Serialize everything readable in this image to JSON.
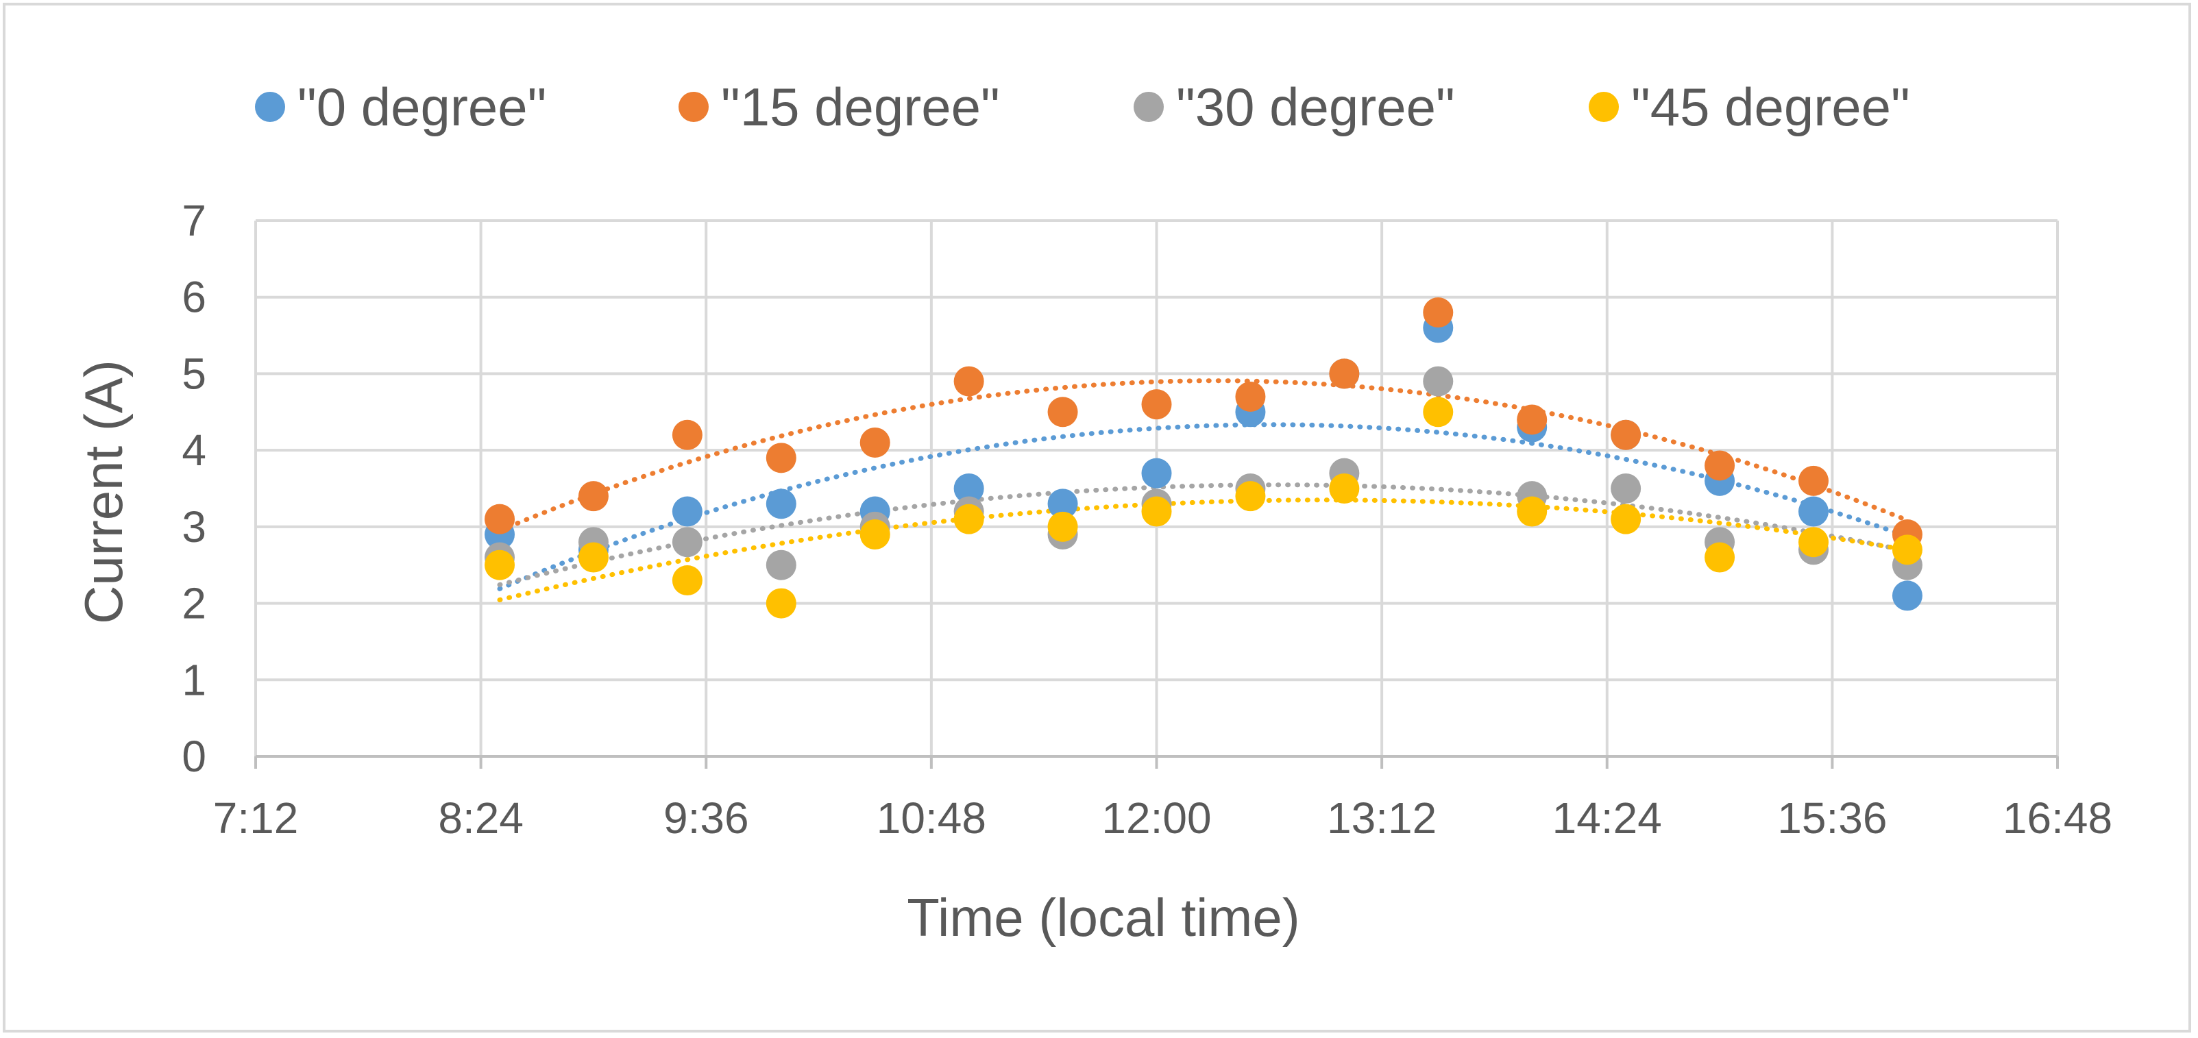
{
  "chart_data": {
    "type": "scatter",
    "title": "",
    "xlabel": "Time  (local time)",
    "ylabel": "Current (A)",
    "x_tick_labels": [
      "7:12",
      "8:24",
      "9:36",
      "10:48",
      "12:00",
      "13:12",
      "14:24",
      "15:36",
      "16:48"
    ],
    "x_ticks_minutes": [
      432,
      504,
      576,
      648,
      720,
      792,
      864,
      936,
      1008
    ],
    "xlim": [
      "7:12",
      "16:48"
    ],
    "y_tick_labels": [
      "0",
      "1",
      "2",
      "3",
      "4",
      "5",
      "6",
      "7"
    ],
    "ylim": [
      0,
      7
    ],
    "grid": true,
    "legend_position": "top",
    "trendline": "polynomial (order 2), dotted",
    "x": [
      "8:30",
      "9:00",
      "9:30",
      "10:00",
      "10:30",
      "11:00",
      "11:30",
      "12:00",
      "12:30",
      "13:00",
      "13:30",
      "14:00",
      "14:30",
      "15:00",
      "15:30",
      "16:00"
    ],
    "series": [
      {
        "name": "\"0 degree\"",
        "color": "#5b9bd5",
        "values": [
          2.9,
          2.7,
          3.2,
          3.3,
          3.2,
          3.5,
          3.3,
          3.7,
          4.5,
          5.0,
          5.6,
          4.3,
          4.2,
          3.6,
          3.2,
          2.1
        ]
      },
      {
        "name": "\"15 degree\"",
        "color": "#ed7d31",
        "values": [
          3.1,
          3.4,
          4.2,
          3.9,
          4.1,
          4.9,
          4.5,
          4.6,
          4.7,
          5.0,
          5.8,
          4.4,
          4.2,
          3.8,
          3.6,
          2.9
        ]
      },
      {
        "name": "\"30 degree\"",
        "color": "#a5a5a5",
        "values": [
          2.6,
          2.8,
          2.8,
          2.5,
          3.0,
          3.2,
          2.9,
          3.3,
          3.5,
          3.7,
          4.9,
          3.4,
          3.5,
          2.8,
          2.7,
          2.5
        ]
      },
      {
        "name": "\"45 degree\"",
        "color": "#ffc000",
        "values": [
          2.5,
          2.6,
          2.3,
          2.0,
          2.9,
          3.1,
          3.0,
          3.2,
          3.4,
          3.5,
          4.5,
          3.2,
          3.1,
          2.6,
          2.8,
          2.7
        ]
      }
    ]
  }
}
